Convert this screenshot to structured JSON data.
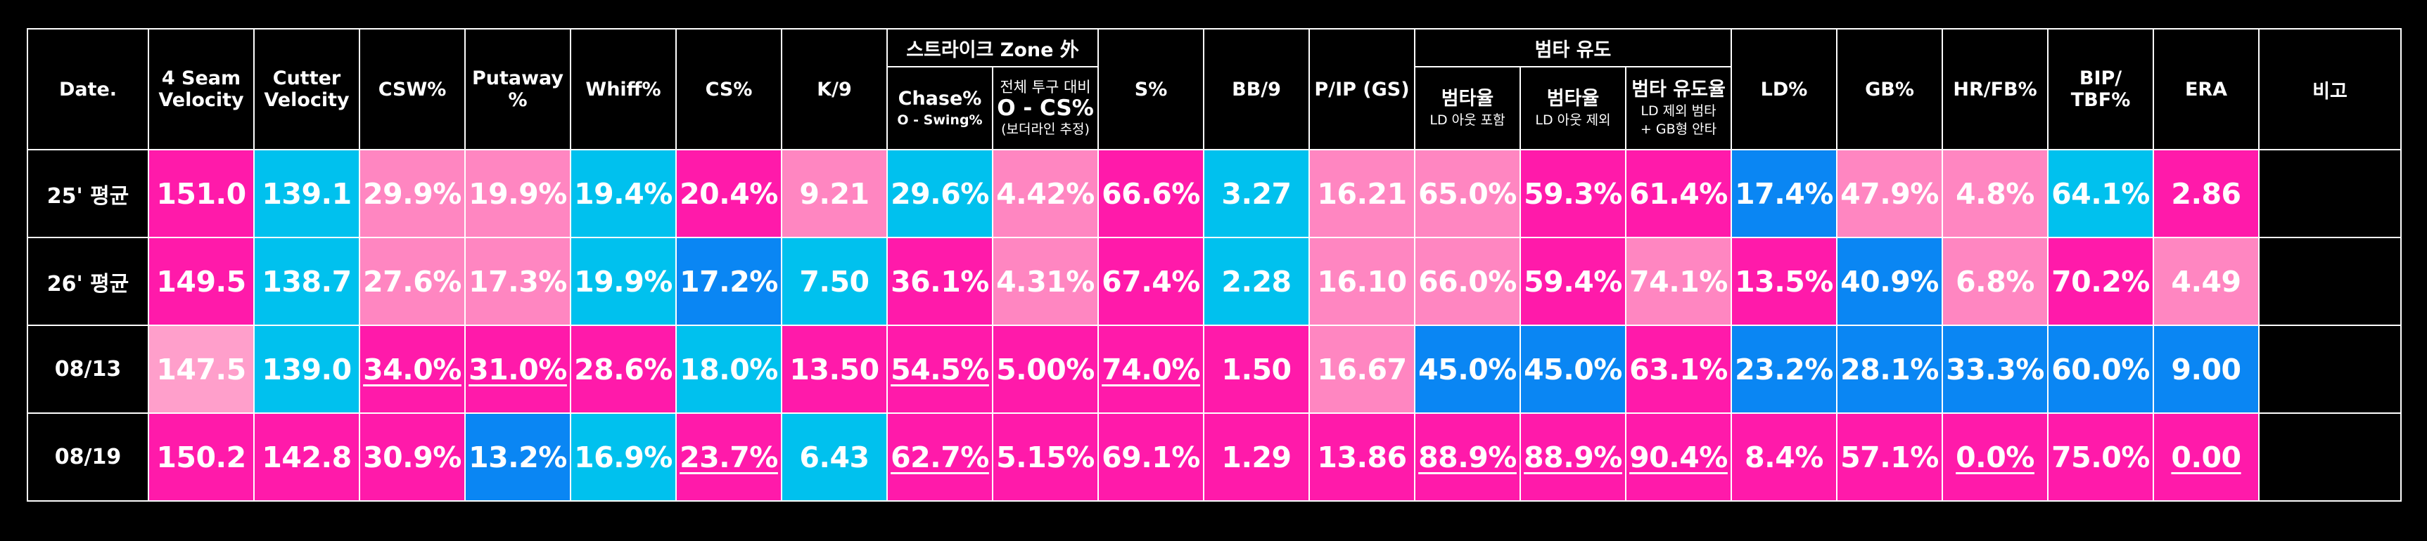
{
  "colors": {
    "magenta": "#ff1aaa",
    "pink": "#ff86c1",
    "light_pink": "#ff9fcb",
    "cyan": "#00c1ee",
    "blue": "#0a86f3",
    "header_bg": "#000000",
    "border": "#ffffff"
  },
  "table": {
    "group_headers": {
      "strike_zone_out": "스트라이크 Zone 外",
      "batted_ball_induce": "범타 유도"
    },
    "columns": {
      "date": "Date.",
      "four_seam": "4 Seam Velocity",
      "cutter": "Cutter Velocity",
      "csw": "CSW%",
      "putaway": "Putaway %",
      "whiff": "Whiff%",
      "cs": "CS%",
      "k9": "K/9",
      "chase": {
        "main": "Chase%",
        "note": "O - Swing%"
      },
      "o_cs": {
        "top": "전체 투구 대비",
        "main": "O - CS%",
        "note": "(보더라인 추정)"
      },
      "s": "S%",
      "bb9": "BB/9",
      "pip": "P/IP (GS)",
      "out_rate_incl": {
        "main": "범타율",
        "note": "LD 아웃 포함"
      },
      "out_rate_excl": {
        "main": "범타율",
        "note": "LD 아웃 제외"
      },
      "induce_rate": {
        "main": "범타 유도율",
        "note1": "LD 제외 범타",
        "note2": "+ GB형 안타"
      },
      "ld": "LD%",
      "gb": "GB%",
      "hrfb": "HR/FB%",
      "bip_tbf": "BIP/ TBF%",
      "era": "ERA",
      "remarks": "비고"
    },
    "rows": [
      {
        "label": "25' 평균",
        "cells": [
          {
            "v": "151.0",
            "c": "magenta"
          },
          {
            "v": "139.1",
            "c": "cyan"
          },
          {
            "v": "29.9%",
            "c": "pink"
          },
          {
            "v": "19.9%",
            "c": "pink"
          },
          {
            "v": "19.4%",
            "c": "cyan"
          },
          {
            "v": "20.4%",
            "c": "magenta"
          },
          {
            "v": "9.21",
            "c": "pink"
          },
          {
            "v": "29.6%",
            "c": "cyan"
          },
          {
            "v": "4.42%",
            "c": "pink"
          },
          {
            "v": "66.6%",
            "c": "magenta"
          },
          {
            "v": "3.27",
            "c": "cyan"
          },
          {
            "v": "16.21",
            "c": "pink"
          },
          {
            "v": "65.0%",
            "c": "pink"
          },
          {
            "v": "59.3%",
            "c": "magenta"
          },
          {
            "v": "61.4%",
            "c": "magenta"
          },
          {
            "v": "17.4%",
            "c": "blue"
          },
          {
            "v": "47.9%",
            "c": "pink"
          },
          {
            "v": "4.8%",
            "c": "pink"
          },
          {
            "v": "64.1%",
            "c": "cyan"
          },
          {
            "v": "2.86",
            "c": "magenta"
          }
        ],
        "remarks": ""
      },
      {
        "label": "26' 평균",
        "cells": [
          {
            "v": "149.5",
            "c": "magenta"
          },
          {
            "v": "138.7",
            "c": "cyan"
          },
          {
            "v": "27.6%",
            "c": "pink"
          },
          {
            "v": "17.3%",
            "c": "pink"
          },
          {
            "v": "19.9%",
            "c": "cyan"
          },
          {
            "v": "17.2%",
            "c": "blue"
          },
          {
            "v": "7.50",
            "c": "cyan"
          },
          {
            "v": "36.1%",
            "c": "magenta"
          },
          {
            "v": "4.31%",
            "c": "pink"
          },
          {
            "v": "67.4%",
            "c": "magenta"
          },
          {
            "v": "2.28",
            "c": "cyan"
          },
          {
            "v": "16.10",
            "c": "pink"
          },
          {
            "v": "66.0%",
            "c": "pink"
          },
          {
            "v": "59.4%",
            "c": "magenta"
          },
          {
            "v": "74.1%",
            "c": "pink"
          },
          {
            "v": "13.5%",
            "c": "magenta"
          },
          {
            "v": "40.9%",
            "c": "blue"
          },
          {
            "v": "6.8%",
            "c": "pink"
          },
          {
            "v": "70.2%",
            "c": "magenta"
          },
          {
            "v": "4.49",
            "c": "pink"
          }
        ],
        "remarks": ""
      },
      {
        "label": "08/13",
        "cells": [
          {
            "v": "147.5",
            "c": "light_pink"
          },
          {
            "v": "139.0",
            "c": "cyan"
          },
          {
            "v": "34.0%",
            "c": "magenta",
            "u": true
          },
          {
            "v": "31.0%",
            "c": "magenta",
            "u": true
          },
          {
            "v": "28.6%",
            "c": "magenta"
          },
          {
            "v": "18.0%",
            "c": "cyan"
          },
          {
            "v": "13.50",
            "c": "magenta"
          },
          {
            "v": "54.5%",
            "c": "magenta",
            "u": true
          },
          {
            "v": "5.00%",
            "c": "magenta"
          },
          {
            "v": "74.0%",
            "c": "magenta",
            "u": true
          },
          {
            "v": "1.50",
            "c": "magenta"
          },
          {
            "v": "16.67",
            "c": "pink"
          },
          {
            "v": "45.0%",
            "c": "blue"
          },
          {
            "v": "45.0%",
            "c": "blue"
          },
          {
            "v": "63.1%",
            "c": "magenta"
          },
          {
            "v": "23.2%",
            "c": "blue"
          },
          {
            "v": "28.1%",
            "c": "blue"
          },
          {
            "v": "33.3%",
            "c": "blue"
          },
          {
            "v": "60.0%",
            "c": "blue"
          },
          {
            "v": "9.00",
            "c": "blue"
          }
        ],
        "remarks": ""
      },
      {
        "label": "08/19",
        "cells": [
          {
            "v": "150.2",
            "c": "magenta"
          },
          {
            "v": "142.8",
            "c": "magenta"
          },
          {
            "v": "30.9%",
            "c": "magenta"
          },
          {
            "v": "13.2%",
            "c": "blue"
          },
          {
            "v": "16.9%",
            "c": "cyan"
          },
          {
            "v": "23.7%",
            "c": "magenta",
            "u": true
          },
          {
            "v": "6.43",
            "c": "cyan"
          },
          {
            "v": "62.7%",
            "c": "magenta",
            "u": true
          },
          {
            "v": "5.15%",
            "c": "magenta"
          },
          {
            "v": "69.1%",
            "c": "magenta"
          },
          {
            "v": "1.29",
            "c": "magenta"
          },
          {
            "v": "13.86",
            "c": "magenta"
          },
          {
            "v": "88.9%",
            "c": "magenta",
            "u": true
          },
          {
            "v": "88.9%",
            "c": "magenta",
            "u": true
          },
          {
            "v": "90.4%",
            "c": "magenta",
            "u": true
          },
          {
            "v": "8.4%",
            "c": "magenta"
          },
          {
            "v": "57.1%",
            "c": "magenta"
          },
          {
            "v": "0.0%",
            "c": "magenta",
            "u": true
          },
          {
            "v": "75.0%",
            "c": "magenta"
          },
          {
            "v": "0.00",
            "c": "magenta",
            "u": true
          }
        ],
        "remarks": ""
      }
    ]
  }
}
